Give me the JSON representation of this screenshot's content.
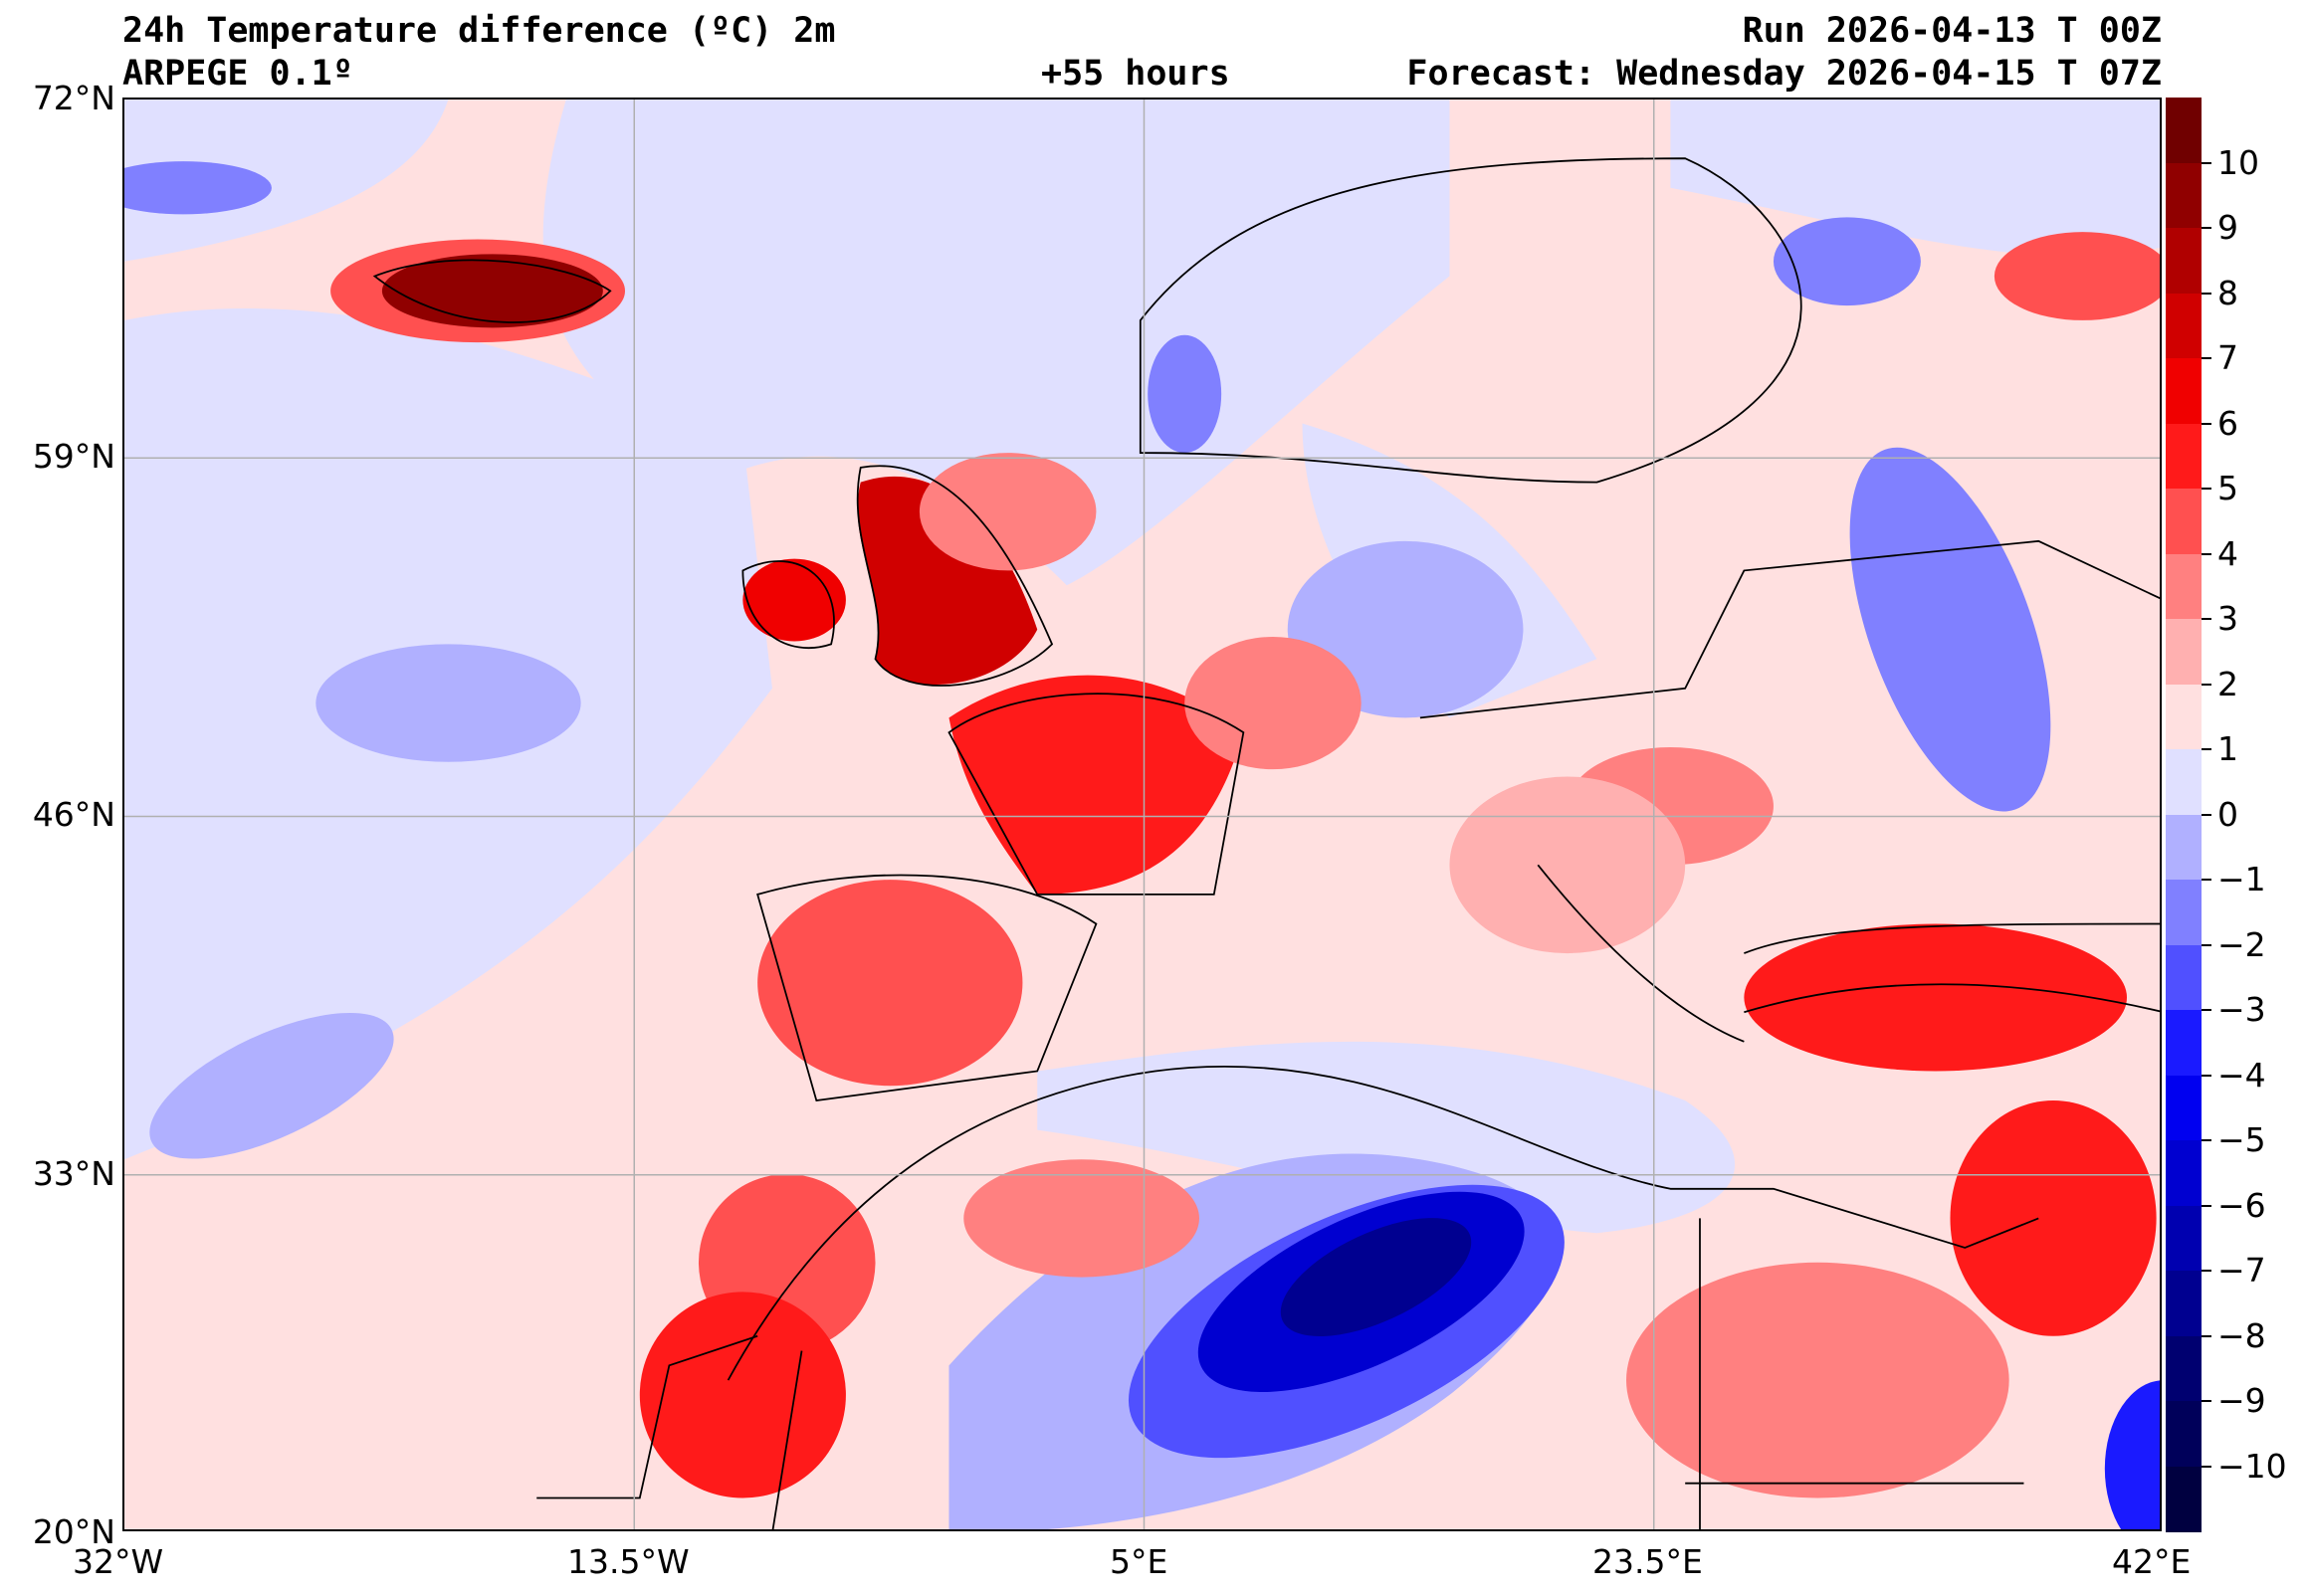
{
  "header": {
    "title": "24h Temperature difference (ºC) 2m",
    "model": "ARPEGE 0.1º",
    "lead_time": "+55 hours",
    "run": "Run 2026-04-13 T 00Z",
    "forecast": "Forecast: Wednesday 2026-04-15 T 07Z"
  },
  "axes": {
    "lat_labels": [
      "72°N",
      "59°N",
      "46°N",
      "33°N",
      "20°N"
    ],
    "lon_labels": [
      "32°W",
      "13.5°W",
      "5°E",
      "23.5°E",
      "42°E"
    ]
  },
  "colorbar": {
    "range": [
      -11,
      11
    ],
    "tick_labels": [
      "10",
      "9",
      "8",
      "7",
      "6",
      "5",
      "4",
      "3",
      "2",
      "1",
      "0",
      "−1",
      "−2",
      "−3",
      "−4",
      "−5",
      "−6",
      "−7",
      "−8",
      "−9",
      "−10"
    ],
    "colors": [
      "#000040",
      "#00005a",
      "#000070",
      "#000090",
      "#0000b0",
      "#0000d0",
      "#0000f0",
      "#1a1aff",
      "#5050ff",
      "#8080ff",
      "#b0b0ff",
      "#e0e0ff",
      "#ffe0e0",
      "#ffb0b0",
      "#ff8080",
      "#ff5050",
      "#ff1a1a",
      "#f00000",
      "#d00000",
      "#b00000",
      "#900000",
      "#700000"
    ]
  }
}
